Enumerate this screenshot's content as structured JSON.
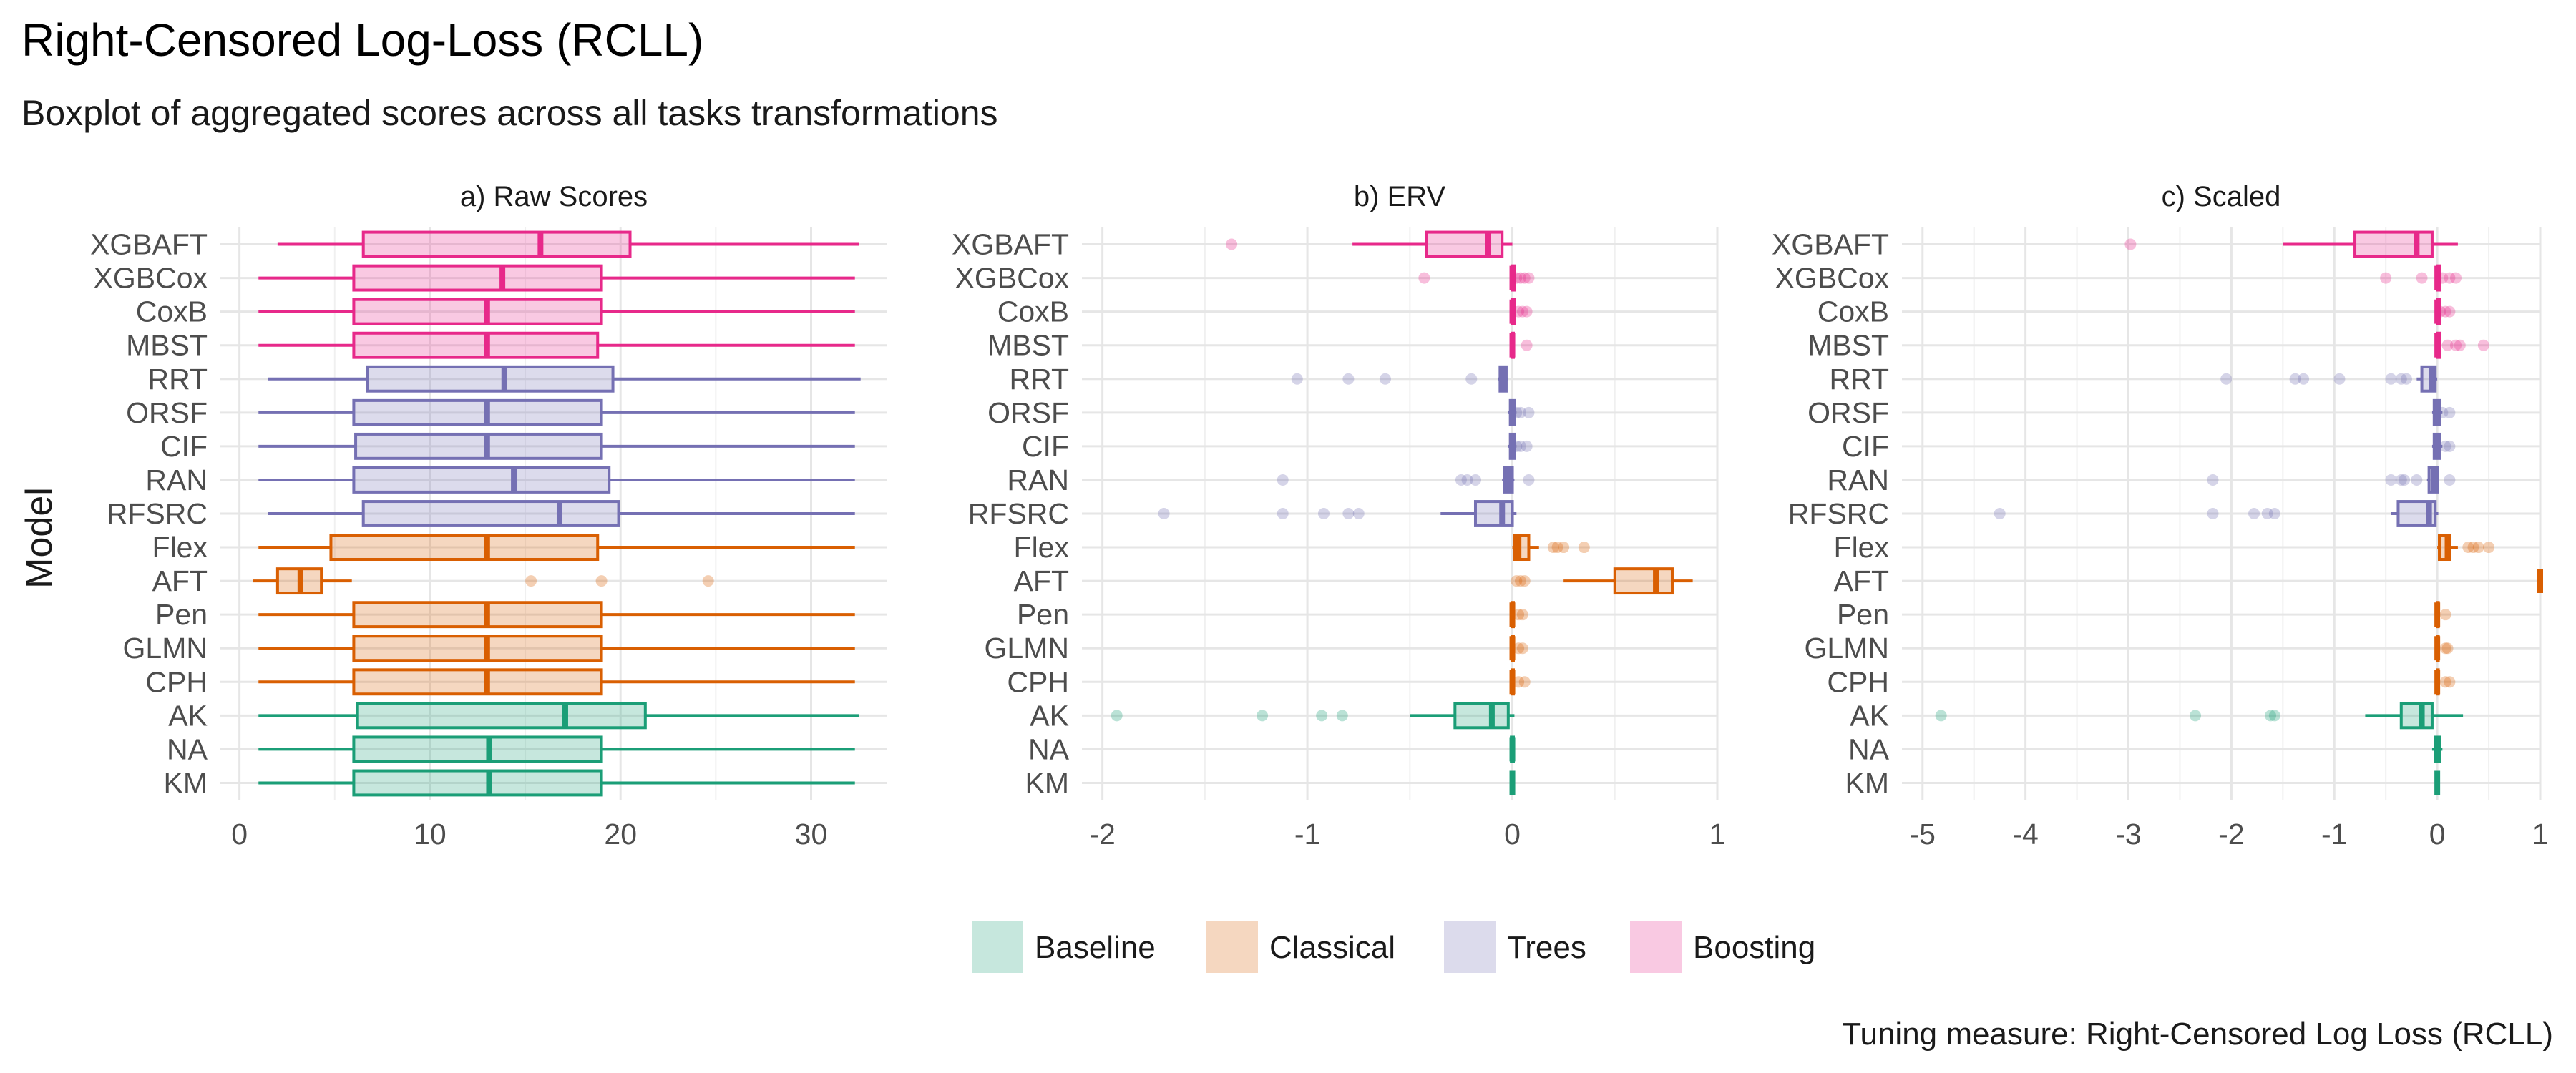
{
  "title": "Right-Censored Log-Loss (RCLL)",
  "subtitle": "Boxplot of aggregated scores across all tasks transformations",
  "caption": "Tuning measure: Right-Censored Log Loss (RCLL)",
  "chart_data": {
    "type": "boxplot",
    "ylabel": "Model",
    "models": [
      "XGBAFT",
      "XGBCox",
      "CoxB",
      "MBST",
      "RRT",
      "ORSF",
      "CIF",
      "RAN",
      "RFSRC",
      "Flex",
      "AFT",
      "Pen",
      "GLMN",
      "CPH",
      "AK",
      "NA",
      "KM"
    ],
    "groups": {
      "XGBAFT": "Boosting",
      "XGBCox": "Boosting",
      "CoxB": "Boosting",
      "MBST": "Boosting",
      "RRT": "Trees",
      "ORSF": "Trees",
      "CIF": "Trees",
      "RAN": "Trees",
      "RFSRC": "Trees",
      "Flex": "Classical",
      "AFT": "Classical",
      "Pen": "Classical",
      "GLMN": "Classical",
      "CPH": "Classical",
      "AK": "Baseline",
      "NA": "Baseline",
      "KM": "Baseline"
    },
    "legend": [
      {
        "name": "Baseline",
        "color": "#1b9e77"
      },
      {
        "name": "Classical",
        "color": "#d95f02"
      },
      {
        "name": "Trees",
        "color": "#7570b3"
      },
      {
        "name": "Boosting",
        "color": "#e7298a"
      }
    ],
    "panels": [
      {
        "title": "a) Raw Scores",
        "xlim": [
          -1,
          34
        ],
        "xticks": [
          0,
          10,
          20,
          30
        ],
        "stats": {
          "XGBAFT": [
            2,
            6.5,
            15.8,
            20.5,
            32.5
          ],
          "XGBCox": [
            1,
            6,
            13.8,
            19,
            32.3
          ],
          "CoxB": [
            1,
            6,
            13,
            19,
            32.3
          ],
          "MBST": [
            1,
            6,
            13,
            18.8,
            32.3
          ],
          "RRT": [
            1.5,
            6.7,
            13.9,
            19.6,
            32.6
          ],
          "ORSF": [
            1,
            6,
            13,
            19,
            32.3
          ],
          "CIF": [
            1,
            6.1,
            13,
            19,
            32.3
          ],
          "RAN": [
            1,
            6,
            14.4,
            19.4,
            32.3
          ],
          "RFSRC": [
            1.5,
            6.5,
            16.8,
            19.9,
            32.3
          ],
          "Flex": [
            1,
            4.8,
            13,
            18.8,
            32.3
          ],
          "AFT": [
            0.7,
            2,
            3.2,
            4.3,
            5.9
          ],
          "Pen": [
            1,
            6,
            13,
            19,
            32.3
          ],
          "GLMN": [
            1,
            6,
            13,
            19,
            32.3
          ],
          "CPH": [
            1,
            6,
            13,
            19,
            32.3
          ],
          "AK": [
            1,
            6.2,
            17.1,
            21.3,
            32.5
          ],
          "NA": [
            1,
            6,
            13.1,
            19,
            32.3
          ],
          "KM": [
            1,
            6,
            13.1,
            19,
            32.3
          ]
        },
        "outliers": {
          "AFT": [
            15.3,
            19,
            24.6
          ]
        }
      },
      {
        "title": "b) ERV",
        "xlim": [
          -2.1,
          1.0
        ],
        "xticks": [
          -2,
          -1,
          0,
          1
        ],
        "stats": {
          "XGBAFT": [
            -0.78,
            -0.42,
            -0.12,
            -0.05,
            0.0
          ],
          "XGBCox": [
            0,
            0,
            0,
            0.01,
            0.01
          ],
          "CoxB": [
            0,
            0,
            0,
            0.01,
            0.01
          ],
          "MBST": [
            0,
            0,
            0,
            0.005,
            0.005
          ],
          "RRT": [
            -0.07,
            -0.06,
            -0.05,
            -0.03,
            -0.02
          ],
          "ORSF": [
            -0.02,
            -0.01,
            0,
            0.01,
            0.02
          ],
          "CIF": [
            -0.02,
            -0.01,
            0,
            0.01,
            0.02
          ],
          "RAN": [
            -0.05,
            -0.04,
            -0.02,
            0,
            0.01
          ],
          "RFSRC": [
            -0.35,
            -0.18,
            -0.05,
            0,
            0.02
          ],
          "Flex": [
            0,
            0.01,
            0.03,
            0.08,
            0.13
          ],
          "AFT": [
            0.25,
            0.5,
            0.7,
            0.78,
            0.88
          ],
          "Pen": [
            0,
            0,
            0,
            0.005,
            0.01
          ],
          "GLMN": [
            0,
            0,
            0,
            0.005,
            0.01
          ],
          "CPH": [
            0,
            0,
            0,
            0.005,
            0.01
          ],
          "AK": [
            -0.5,
            -0.28,
            -0.1,
            -0.02,
            0.01
          ],
          "NA": [
            -0.01,
            -0.005,
            0,
            0.005,
            0.01
          ],
          "KM": [
            0,
            0,
            0,
            0,
            0
          ]
        },
        "outliers": {
          "XGBAFT": [
            -1.37
          ],
          "XGBCox": [
            -0.43,
            0.02,
            0.04,
            0.06,
            0.08
          ],
          "CoxB": [
            0.03,
            0.05,
            0.07
          ],
          "MBST": [
            0.07
          ],
          "RRT": [
            -1.05,
            -0.8,
            -0.62,
            -0.2
          ],
          "ORSF": [
            0.02,
            0.04,
            0.08
          ],
          "CIF": [
            0.02,
            0.04,
            0.07
          ],
          "RAN": [
            -1.12,
            -0.25,
            -0.22,
            -0.18,
            0.08
          ],
          "RFSRC": [
            -1.7,
            -1.12,
            -0.92,
            -0.8,
            -0.75
          ],
          "Flex": [
            0.2,
            0.22,
            0.25,
            0.35
          ],
          "AFT": [
            0.02,
            0.04,
            0.06
          ],
          "Pen": [
            0.03,
            0.05
          ],
          "GLMN": [
            0.03,
            0.05
          ],
          "CPH": [
            0.03,
            0.06
          ],
          "AK": [
            -1.93,
            -1.22,
            -0.93,
            -0.83
          ]
        }
      },
      {
        "title": "c) Scaled",
        "xlim": [
          -5.2,
          1.0
        ],
        "xticks": [
          -5,
          -4,
          -3,
          -2,
          -1,
          0,
          1
        ],
        "stats": {
          "XGBAFT": [
            -1.5,
            -0.8,
            -0.2,
            -0.05,
            0.2
          ],
          "XGBCox": [
            0,
            0,
            0,
            0.02,
            0.04
          ],
          "CoxB": [
            0,
            0,
            0,
            0.02,
            0.04
          ],
          "MBST": [
            0,
            0,
            0,
            0.02,
            0.04
          ],
          "RRT": [
            -0.2,
            -0.15,
            -0.05,
            -0.02,
            0
          ],
          "ORSF": [
            -0.05,
            -0.03,
            0,
            0.02,
            0.05
          ],
          "CIF": [
            -0.05,
            -0.03,
            0,
            0.02,
            0.05
          ],
          "RAN": [
            -0.1,
            -0.08,
            -0.03,
            0,
            0.02
          ],
          "RFSRC": [
            -0.45,
            -0.38,
            -0.08,
            -0.02,
            0.01
          ],
          "Flex": [
            0,
            0.02,
            0.1,
            0.12,
            0.2
          ],
          "AFT": [
            1,
            1,
            1,
            1,
            1
          ],
          "Pen": [
            0,
            0,
            0,
            0.01,
            0.02
          ],
          "GLMN": [
            0,
            0,
            0,
            0.01,
            0.02
          ],
          "CPH": [
            0,
            0,
            0,
            0.01,
            0.02
          ],
          "AK": [
            -0.7,
            -0.35,
            -0.15,
            -0.05,
            0.25
          ],
          "NA": [
            -0.05,
            -0.02,
            0,
            0.02,
            0.05
          ],
          "KM": [
            0,
            0,
            0,
            0,
            0
          ]
        },
        "outliers": {
          "XGBAFT": [
            -2.98
          ],
          "XGBCox": [
            -0.5,
            -0.15,
            0.05,
            0.12,
            0.18
          ],
          "CoxB": [
            0.03,
            0.08,
            0.12
          ],
          "MBST": [
            0.1,
            0.18,
            0.22,
            0.45
          ],
          "RRT": [
            -2.05,
            -1.38,
            -1.3,
            -0.95,
            -0.45,
            -0.35,
            -0.3
          ],
          "ORSF": [
            0.05,
            0.12
          ],
          "CIF": [
            0.08,
            0.12
          ],
          "RAN": [
            -2.18,
            -0.45,
            -0.35,
            -0.32,
            -0.2,
            0.12
          ],
          "RFSRC": [
            -4.25,
            -2.18,
            -1.78,
            -1.65,
            -1.58
          ],
          "Flex": [
            0.3,
            0.35,
            0.4,
            0.5
          ],
          "Pen": [
            0.08
          ],
          "GLMN": [
            0.08,
            0.1
          ],
          "CPH": [
            0.08,
            0.12
          ],
          "AK": [
            -4.82,
            -2.35,
            -1.62,
            -1.58
          ]
        }
      }
    ]
  }
}
